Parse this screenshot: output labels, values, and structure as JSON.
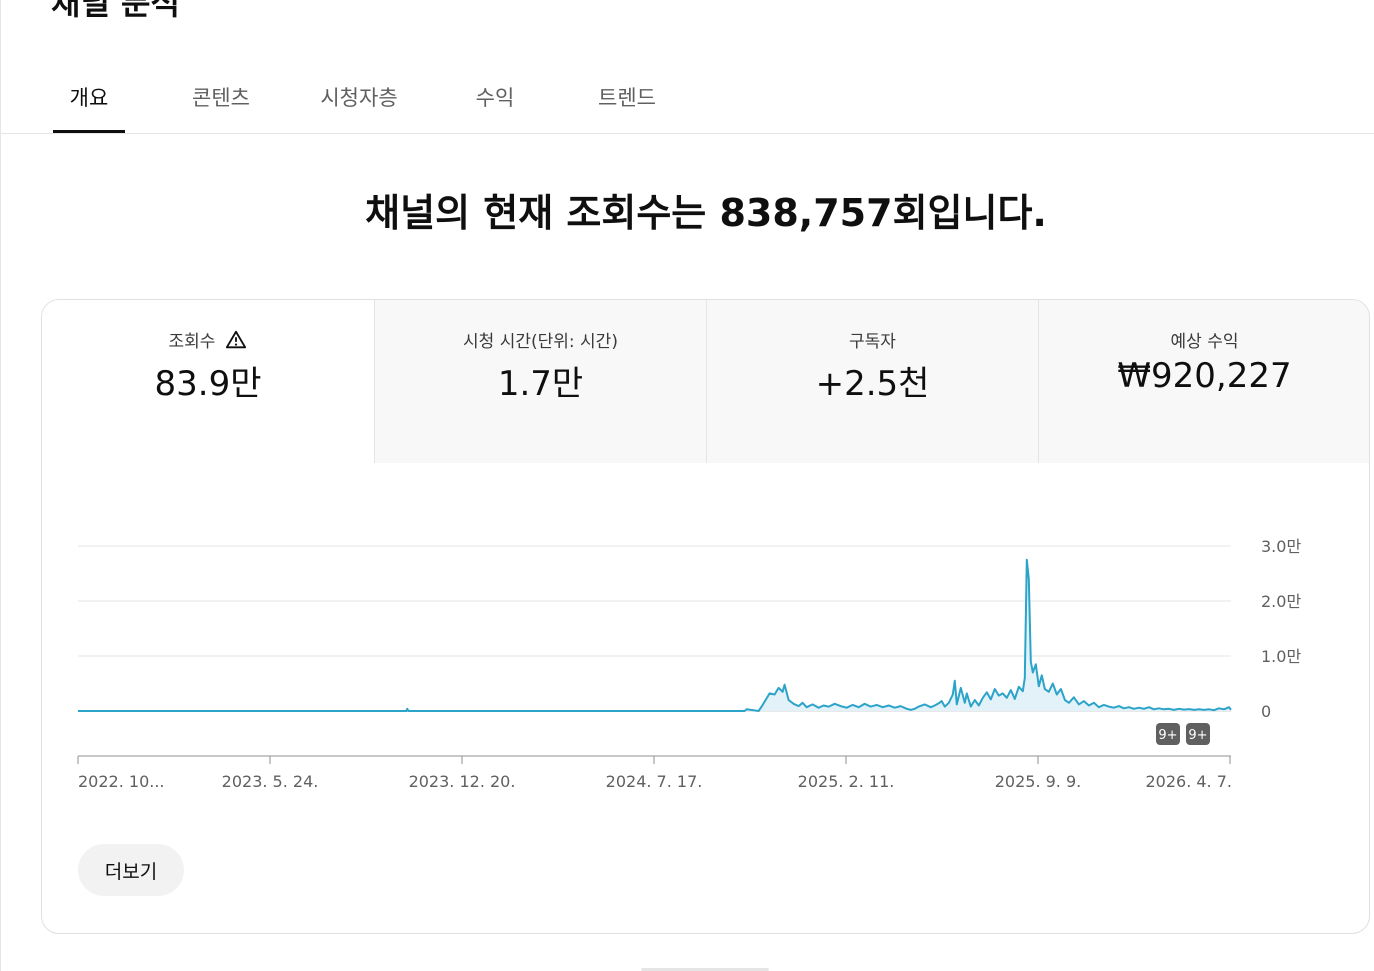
{
  "page_title": "채널 분석",
  "tabs": [
    {
      "label": "개요",
      "active": true
    },
    {
      "label": "콘텐츠",
      "active": false
    },
    {
      "label": "시청자층",
      "active": false
    },
    {
      "label": "수익",
      "active": false
    },
    {
      "label": "트렌드",
      "active": false
    }
  ],
  "headline": "채널의 현재 조회수는 838,757회입니다.",
  "metrics": [
    {
      "label": "조회수",
      "value": "83.9만",
      "icon": "warning-triangle-icon"
    },
    {
      "label": "시청 시간(단위: 시간)",
      "value": "1.7만"
    },
    {
      "label": "구독자",
      "value": "+2.5천"
    },
    {
      "label": "예상 수익",
      "value": "₩920,227"
    }
  ],
  "more_button": "더보기",
  "colors": {
    "line": "#2ca3c9",
    "fill": "#e3f2f9",
    "grid": "#e5e5e5",
    "badge": "#606060"
  },
  "chart_data": {
    "type": "line",
    "series": [
      {
        "name": "조회수",
        "values": [
          [
            0,
            0
          ],
          [
            328,
            0
          ],
          [
            329,
            400
          ],
          [
            330,
            0
          ],
          [
            666,
            0
          ],
          [
            668,
            300
          ],
          [
            680,
            0
          ],
          [
            683,
            800
          ],
          [
            687,
            2000
          ],
          [
            691,
            3200
          ],
          [
            696,
            3000
          ],
          [
            700,
            4200
          ],
          [
            704,
            3500
          ],
          [
            706,
            4800
          ],
          [
            710,
            2000
          ],
          [
            715,
            1300
          ],
          [
            720,
            900
          ],
          [
            724,
            1500
          ],
          [
            728,
            700
          ],
          [
            734,
            1200
          ],
          [
            740,
            600
          ],
          [
            745,
            1000
          ],
          [
            750,
            800
          ],
          [
            756,
            1300
          ],
          [
            762,
            900
          ],
          [
            768,
            600
          ],
          [
            774,
            1100
          ],
          [
            780,
            700
          ],
          [
            786,
            1300
          ],
          [
            792,
            800
          ],
          [
            798,
            1100
          ],
          [
            804,
            700
          ],
          [
            810,
            1000
          ],
          [
            816,
            600
          ],
          [
            822,
            900
          ],
          [
            828,
            400
          ],
          [
            832,
            200
          ],
          [
            836,
            400
          ],
          [
            840,
            800
          ],
          [
            846,
            1200
          ],
          [
            852,
            700
          ],
          [
            856,
            1000
          ],
          [
            860,
            1400
          ],
          [
            863,
            1800
          ],
          [
            866,
            800
          ],
          [
            870,
            1500
          ],
          [
            874,
            3000
          ],
          [
            876,
            5500
          ],
          [
            878,
            1200
          ],
          [
            882,
            4200
          ],
          [
            886,
            1500
          ],
          [
            888,
            3200
          ],
          [
            892,
            800
          ],
          [
            896,
            2000
          ],
          [
            900,
            1000
          ],
          [
            904,
            2400
          ],
          [
            908,
            3400
          ],
          [
            912,
            2100
          ],
          [
            916,
            4000
          ],
          [
            920,
            2800
          ],
          [
            924,
            3200
          ],
          [
            928,
            2400
          ],
          [
            932,
            3800
          ],
          [
            936,
            2200
          ],
          [
            940,
            4400
          ],
          [
            944,
            3600
          ],
          [
            946,
            6000
          ],
          [
            948,
            27500
          ],
          [
            950,
            24000
          ],
          [
            952,
            9000
          ],
          [
            954,
            7000
          ],
          [
            957,
            8500
          ],
          [
            960,
            4500
          ],
          [
            963,
            6500
          ],
          [
            966,
            4000
          ],
          [
            970,
            3500
          ],
          [
            974,
            5000
          ],
          [
            978,
            3000
          ],
          [
            982,
            4000
          ],
          [
            986,
            2000
          ],
          [
            990,
            1500
          ],
          [
            995,
            2500
          ],
          [
            1000,
            1200
          ],
          [
            1005,
            1800
          ],
          [
            1010,
            1000
          ],
          [
            1015,
            1500
          ],
          [
            1020,
            700
          ],
          [
            1025,
            1100
          ],
          [
            1030,
            800
          ],
          [
            1035,
            600
          ],
          [
            1040,
            900
          ],
          [
            1045,
            500
          ],
          [
            1050,
            700
          ],
          [
            1055,
            400
          ],
          [
            1060,
            600
          ],
          [
            1065,
            400
          ],
          [
            1070,
            700
          ],
          [
            1075,
            300
          ],
          [
            1080,
            500
          ],
          [
            1085,
            300
          ],
          [
            1090,
            400
          ],
          [
            1095,
            200
          ],
          [
            1100,
            400
          ],
          [
            1105,
            250
          ],
          [
            1110,
            350
          ],
          [
            1115,
            200
          ],
          [
            1120,
            300
          ],
          [
            1125,
            200
          ],
          [
            1130,
            300
          ],
          [
            1135,
            150
          ],
          [
            1140,
            500
          ],
          [
            1145,
            300
          ],
          [
            1150,
            700
          ],
          [
            1152,
            200
          ]
        ]
      }
    ],
    "x_ticks": [
      "2022. 10...",
      "2023. 5. 24.",
      "2023. 12. 20.",
      "2024. 7. 17.",
      "2025. 2. 11.",
      "2025. 9. 9.",
      "2026. 4. 7."
    ],
    "y_ticks": [
      "3.0만",
      "2.0만",
      "1.0만",
      "0"
    ],
    "ylim": [
      0,
      30000
    ],
    "x_unit": "days since start",
    "x_max": 1152,
    "badges": [
      "9+",
      "9+"
    ]
  }
}
